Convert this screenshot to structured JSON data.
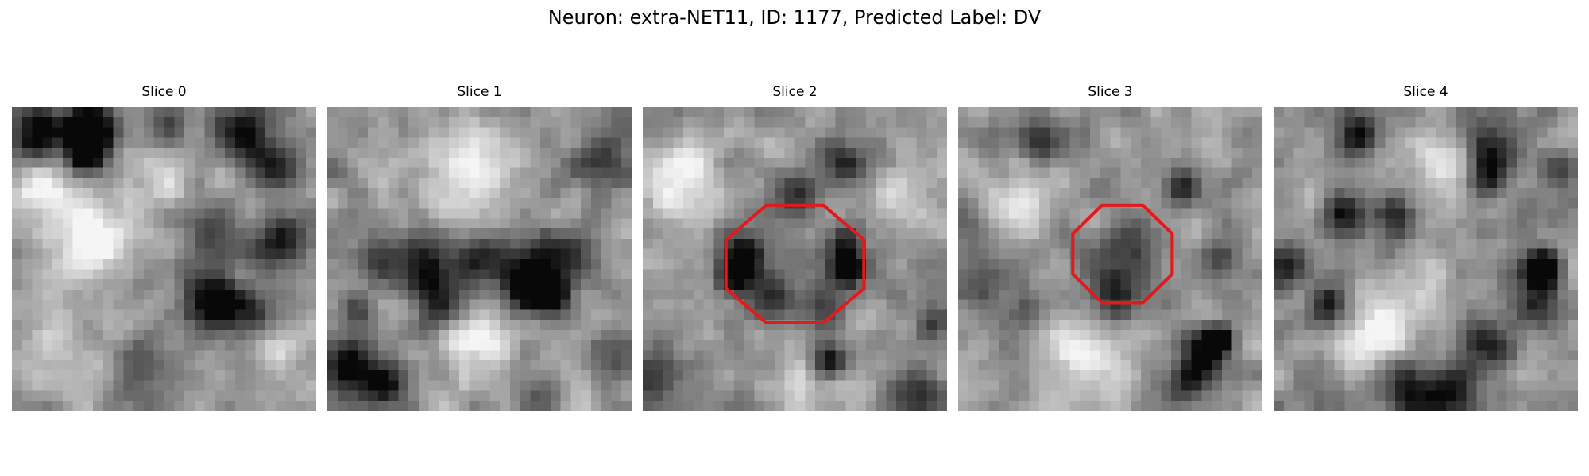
{
  "suptitle": "Neuron: extra-NET11, ID: 1177, Predicted Label: DV",
  "grid_size": 30,
  "seeds": [
    11,
    23,
    37,
    51,
    67
  ],
  "colors": {
    "background": "#ffffff",
    "text": "#000000",
    "roi": "#e31a1c"
  },
  "slices": [
    {
      "title": "Slice 0",
      "blobs": [
        {
          "c": 2.2,
          "r": 2.3,
          "s": 1.7,
          "a": -0.6
        },
        {
          "c": 7.5,
          "r": 2.5,
          "s": 1.7,
          "a": -1.0
        },
        {
          "c": 7.3,
          "r": 4.3,
          "s": 1.3,
          "a": -0.75
        },
        {
          "c": 15.0,
          "r": 1.5,
          "s": 1.6,
          "a": -0.3
        },
        {
          "c": 22.5,
          "r": 2.5,
          "s": 1.8,
          "a": -0.55
        },
        {
          "c": 25.8,
          "r": 5.5,
          "s": 1.8,
          "a": -0.45
        },
        {
          "c": 20.0,
          "r": 12.0,
          "s": 2.0,
          "a": -0.35
        },
        {
          "c": 26.5,
          "r": 13.5,
          "s": 2.0,
          "a": -0.4
        },
        {
          "c": 19.5,
          "r": 19.0,
          "s": 2.0,
          "a": -0.7
        },
        {
          "c": 23.0,
          "r": 20.0,
          "s": 2.0,
          "a": -0.35
        },
        {
          "c": 8.0,
          "r": 13.5,
          "s": 2.5,
          "a": 0.45
        },
        {
          "c": 3.0,
          "r": 8.5,
          "s": 2.2,
          "a": 0.35
        },
        {
          "c": 14.0,
          "r": 7.0,
          "s": 3.0,
          "a": 0.2
        },
        {
          "c": 5.0,
          "r": 25.0,
          "s": 3.0,
          "a": 0.2
        },
        {
          "c": 13.0,
          "r": 26.0,
          "s": 2.5,
          "a": -0.25
        },
        {
          "c": 26.0,
          "r": 25.0,
          "s": 2.5,
          "a": 0.2
        }
      ]
    },
    {
      "title": "Slice 1",
      "blobs": [
        {
          "c": 15.0,
          "r": 15.2,
          "s": 1.8,
          "a": -0.5
        },
        {
          "c": 10.0,
          "r": 15.0,
          "s": 2.0,
          "a": -0.45
        },
        {
          "c": 20.0,
          "r": 16.0,
          "s": 2.0,
          "a": -0.5
        },
        {
          "c": 22.0,
          "r": 18.5,
          "s": 1.2,
          "a": -0.9
        },
        {
          "c": 19.5,
          "r": 18.2,
          "s": 1.5,
          "a": -0.5
        },
        {
          "c": 11.0,
          "r": 19.0,
          "s": 1.8,
          "a": -0.45
        },
        {
          "c": 5.0,
          "r": 15.5,
          "s": 1.5,
          "a": -0.4
        },
        {
          "c": 24.0,
          "r": 14.5,
          "s": 1.5,
          "a": -0.35
        },
        {
          "c": 14.0,
          "r": 6.5,
          "s": 3.5,
          "a": 0.35
        },
        {
          "c": 15.0,
          "r": 23.5,
          "s": 2.5,
          "a": 0.35
        },
        {
          "c": 2.0,
          "r": 25.5,
          "s": 1.8,
          "a": -0.55
        },
        {
          "c": 5.5,
          "r": 27.5,
          "s": 1.5,
          "a": -0.55
        },
        {
          "c": 3.0,
          "r": 20.0,
          "s": 1.2,
          "a": -0.35
        },
        {
          "c": 27.0,
          "r": 5.0,
          "s": 1.8,
          "a": -0.35
        },
        {
          "c": 28.5,
          "r": 25.0,
          "s": 1.5,
          "a": -0.35
        },
        {
          "c": 21.0,
          "r": 28.0,
          "s": 1.5,
          "a": -0.3
        }
      ]
    },
    {
      "title": "Slice 2",
      "blobs": [
        {
          "c": 15.0,
          "r": 15.0,
          "s": 3.0,
          "a": -0.15
        },
        {
          "c": 10.0,
          "r": 14.5,
          "s": 1.4,
          "a": -0.55
        },
        {
          "c": 9.0,
          "r": 17.0,
          "s": 1.3,
          "a": -0.55
        },
        {
          "c": 20.3,
          "r": 16.0,
          "s": 1.0,
          "a": -0.95
        },
        {
          "c": 20.0,
          "r": 13.5,
          "s": 1.3,
          "a": -0.55
        },
        {
          "c": 12.5,
          "r": 19.5,
          "s": 1.5,
          "a": -0.35
        },
        {
          "c": 18.0,
          "r": 20.5,
          "s": 1.5,
          "a": -0.35
        },
        {
          "c": 15.0,
          "r": 8.5,
          "s": 1.8,
          "a": -0.3
        },
        {
          "c": 20.0,
          "r": 5.5,
          "s": 1.5,
          "a": -0.45
        },
        {
          "c": 4.5,
          "r": 5.5,
          "s": 2.0,
          "a": 0.45
        },
        {
          "c": 3.0,
          "r": 9.0,
          "s": 1.8,
          "a": 0.3
        },
        {
          "c": 25.0,
          "r": 9.0,
          "s": 2.0,
          "a": 0.3
        },
        {
          "c": 27.0,
          "r": 28.5,
          "s": 1.8,
          "a": -0.4
        },
        {
          "c": 18.5,
          "r": 25.0,
          "s": 1.3,
          "a": -0.5
        },
        {
          "c": 1.5,
          "r": 26.5,
          "s": 1.8,
          "a": -0.35
        },
        {
          "c": 28.5,
          "r": 21.5,
          "s": 1.3,
          "a": -0.35
        },
        {
          "c": 15.0,
          "r": 27.0,
          "s": 2.0,
          "a": 0.2
        }
      ],
      "roi": {
        "cx": 15.0,
        "cy": 15.5,
        "rx": 6.8,
        "ry": 5.8
      }
    },
    {
      "title": "Slice 3",
      "blobs": [
        {
          "c": 16.0,
          "r": 15.0,
          "s": 2.5,
          "a": -0.35
        },
        {
          "c": 15.0,
          "r": 19.0,
          "s": 1.5,
          "a": -0.35
        },
        {
          "c": 24.0,
          "r": 24.5,
          "s": 1.8,
          "a": -0.55
        },
        {
          "c": 25.5,
          "r": 23.0,
          "s": 1.0,
          "a": -0.85
        },
        {
          "c": 22.0,
          "r": 27.5,
          "s": 1.5,
          "a": -0.35
        },
        {
          "c": 26.0,
          "r": 15.0,
          "s": 1.5,
          "a": -0.35
        },
        {
          "c": 8.0,
          "r": 3.5,
          "s": 1.5,
          "a": -0.4
        },
        {
          "c": 22.0,
          "r": 8.0,
          "s": 1.3,
          "a": -0.35
        },
        {
          "c": 6.0,
          "r": 9.5,
          "s": 2.5,
          "a": 0.3
        },
        {
          "c": 13.0,
          "r": 24.5,
          "s": 2.5,
          "a": 0.35
        },
        {
          "c": 2.0,
          "r": 17.0,
          "s": 2.0,
          "a": -0.25
        },
        {
          "c": 6.0,
          "r": 20.5,
          "s": 1.5,
          "a": -0.2
        }
      ],
      "roi": {
        "cx": 16.2,
        "cy": 14.5,
        "rx": 4.9,
        "ry": 4.8
      }
    },
    {
      "title": "Slice 4",
      "blobs": [
        {
          "c": 7.0,
          "r": 10.5,
          "s": 1.4,
          "a": -0.5
        },
        {
          "c": 12.0,
          "r": 10.5,
          "s": 1.4,
          "a": -0.5
        },
        {
          "c": 21.5,
          "r": 3.5,
          "s": 1.8,
          "a": -0.45
        },
        {
          "c": 21.0,
          "r": 7.0,
          "s": 1.4,
          "a": -0.5
        },
        {
          "c": 26.5,
          "r": 16.0,
          "s": 1.3,
          "a": -0.95
        },
        {
          "c": 26.0,
          "r": 19.5,
          "s": 1.5,
          "a": -0.45
        },
        {
          "c": 5.5,
          "r": 19.5,
          "s": 1.4,
          "a": -0.6
        },
        {
          "c": 13.0,
          "r": 27.5,
          "s": 2.0,
          "a": -0.5
        },
        {
          "c": 17.0,
          "r": 28.0,
          "s": 1.8,
          "a": -0.45
        },
        {
          "c": 21.0,
          "r": 23.5,
          "s": 1.8,
          "a": -0.5
        },
        {
          "c": 1.5,
          "r": 16.0,
          "s": 1.5,
          "a": -0.45
        },
        {
          "c": 8.5,
          "r": 3.0,
          "s": 1.5,
          "a": -0.45
        },
        {
          "c": 10.0,
          "r": 22.0,
          "s": 2.2,
          "a": 0.45
        },
        {
          "c": 16.5,
          "r": 6.0,
          "s": 2.5,
          "a": 0.3
        },
        {
          "c": 15.0,
          "r": 17.0,
          "s": 2.5,
          "a": 0.2
        },
        {
          "c": 28.5,
          "r": 6.0,
          "s": 1.5,
          "a": -0.35
        }
      ]
    }
  ]
}
